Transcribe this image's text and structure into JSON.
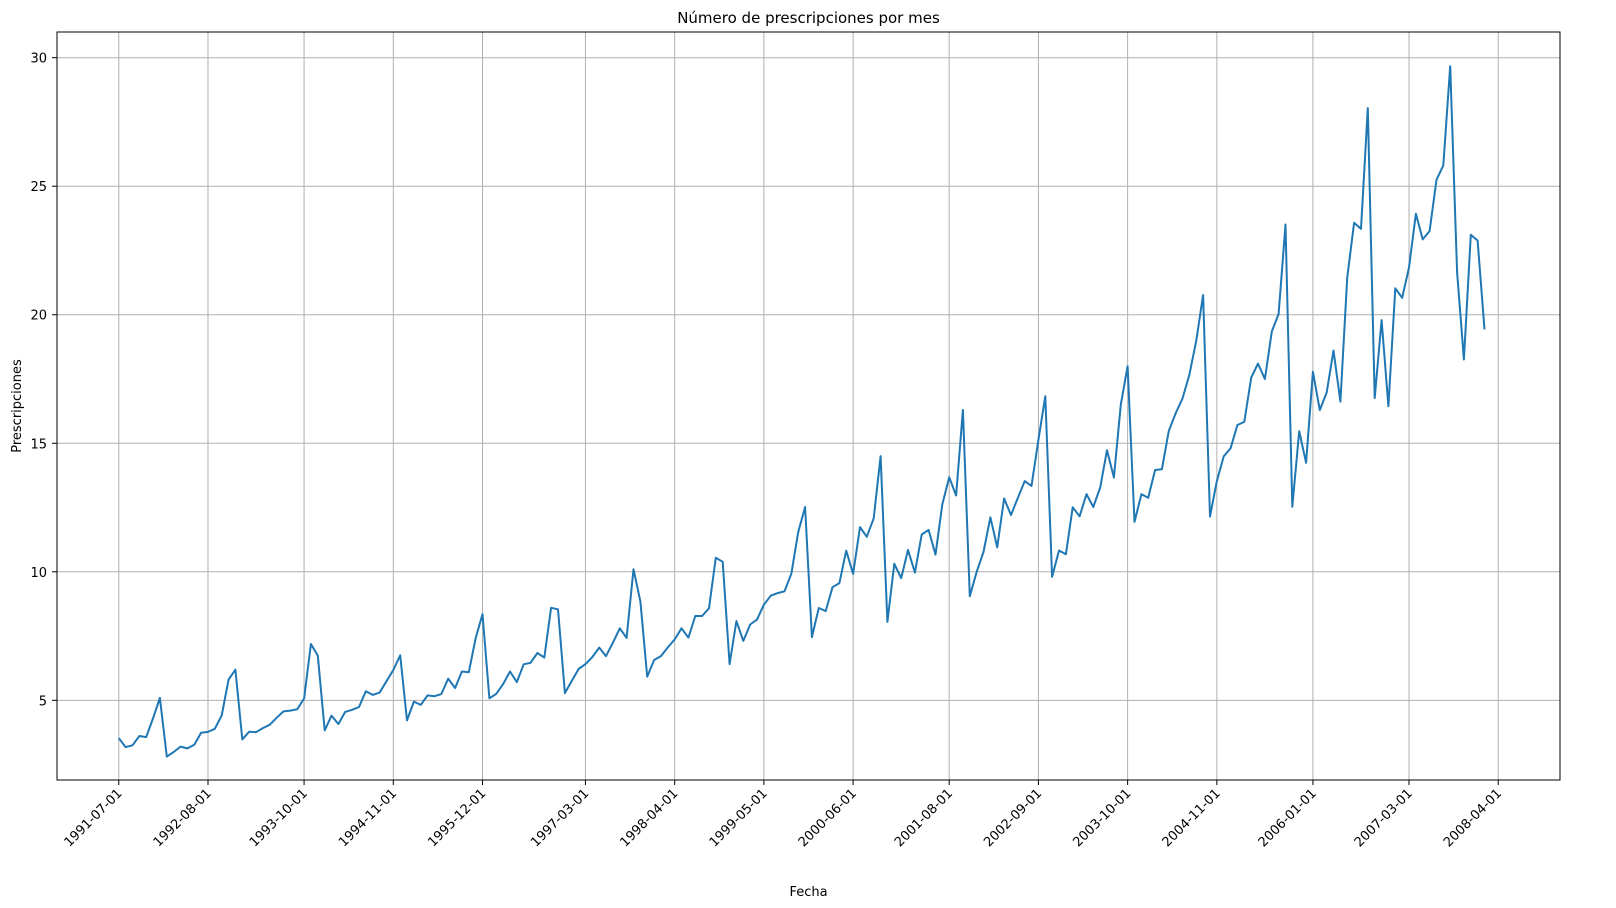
{
  "chart_data": {
    "type": "line",
    "title": "Número de prescripciones por mes",
    "xlabel": "Fecha",
    "ylabel": "Prescripciones",
    "x_ticks": [
      "1991-07-01",
      "1992-08-01",
      "1993-10-01",
      "1994-11-01",
      "1995-12-01",
      "1997-03-01",
      "1998-04-01",
      "1999-05-01",
      "2000-06-01",
      "2001-08-01",
      "2002-09-01",
      "2003-10-01",
      "2004-11-01",
      "2006-01-01",
      "2007-03-01",
      "2008-04-01"
    ],
    "y_ticks": [
      5,
      10,
      15,
      20,
      25,
      30
    ],
    "xlim": [
      "1990-10-01",
      "2009-01-01"
    ],
    "ylim": [
      1.9,
      31.0
    ],
    "grid": true,
    "line_color": "#1f77b4",
    "series": [
      {
        "start": "1991-07-01",
        "values": [
          3.53,
          3.18,
          3.25,
          3.61,
          3.57,
          4.31,
          5.09,
          2.81,
          2.99,
          3.2,
          3.13,
          3.27,
          3.74,
          3.77,
          3.89,
          4.41,
          5.81,
          6.19,
          3.48,
          3.78,
          3.76,
          3.92,
          4.05,
          4.32,
          4.57,
          4.6,
          4.65,
          5.07,
          7.19,
          6.74,
          3.83,
          4.4,
          4.08,
          4.55,
          4.63,
          4.74,
          5.35,
          5.21,
          5.3,
          5.74,
          6.18,
          6.75,
          4.22,
          4.95,
          4.82,
          5.19,
          5.16,
          5.24,
          5.84,
          5.48,
          6.12,
          6.09,
          7.41,
          8.35,
          5.08,
          5.25,
          5.63,
          6.12,
          5.71,
          6.4,
          6.46,
          6.84,
          6.66,
          8.6,
          8.54,
          5.28,
          5.75,
          6.22,
          6.41,
          6.68,
          7.05,
          6.72,
          7.24,
          7.8,
          7.43,
          10.1,
          8.84,
          5.92,
          6.57,
          6.72,
          7.06,
          7.37,
          7.8,
          7.44,
          8.28,
          8.28,
          8.58,
          10.55,
          10.39,
          6.41,
          8.08,
          7.31,
          7.95,
          8.14,
          8.72,
          9.07,
          9.17,
          9.24,
          9.92,
          11.54,
          12.52,
          7.46,
          8.59,
          8.47,
          9.4,
          9.56,
          10.82,
          9.92,
          11.74,
          11.36,
          12.08,
          14.5,
          8.05,
          10.31,
          9.75,
          10.85,
          9.97,
          11.45,
          11.63,
          10.67,
          12.62,
          13.68,
          12.97,
          16.3,
          9.05,
          9.99,
          10.77,
          12.12,
          10.95,
          12.85,
          12.21,
          12.87,
          13.53,
          13.34,
          15.13,
          16.83,
          9.8,
          10.83,
          10.68,
          12.51,
          12.16,
          13.02,
          12.52,
          13.28,
          14.73,
          13.67,
          16.5,
          18.0,
          11.94,
          13.02,
          12.88,
          13.96,
          13.99,
          15.48,
          16.17,
          16.74,
          17.67,
          19.0,
          20.77,
          12.15,
          13.52,
          14.49,
          14.81,
          15.71,
          15.83,
          17.55,
          18.1,
          17.5,
          19.35,
          20.03,
          23.51,
          12.53,
          15.47,
          14.24,
          17.78,
          16.29,
          16.98,
          18.61,
          16.62,
          21.43,
          23.58,
          23.34,
          28.04,
          16.76,
          19.79,
          16.44,
          21.03,
          20.66,
          21.84,
          23.93,
          22.93,
          23.26,
          25.25,
          25.81,
          29.67,
          21.65,
          18.26,
          23.11,
          22.89,
          19.43
        ]
      }
    ]
  }
}
